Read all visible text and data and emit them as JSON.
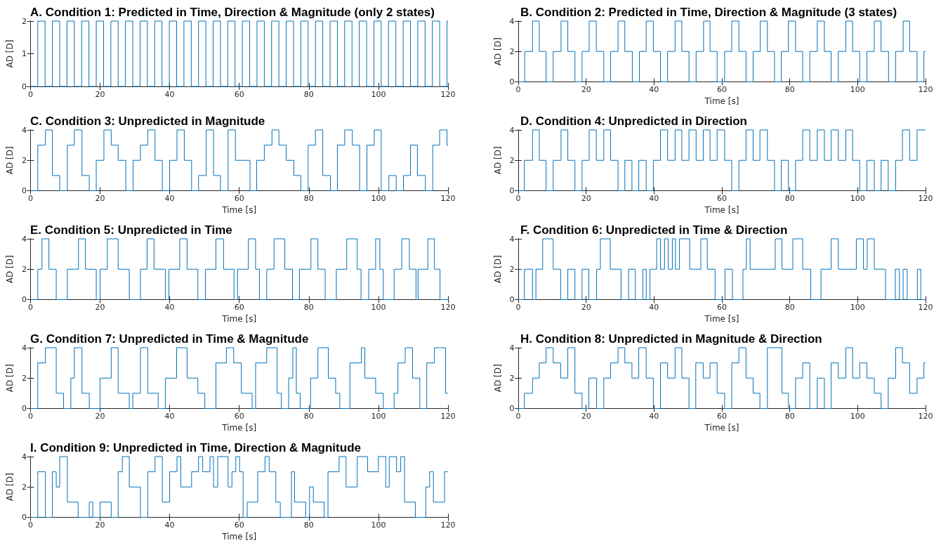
{
  "chart_data": [
    {
      "type": "step",
      "title": "A. Condition 1: Predicted in Time, Direction & Magnitude (only 2 states)",
      "ylabel": "AD [D]",
      "color": "#0072bd",
      "xlim": [
        0,
        120
      ],
      "xticks": [
        0,
        20,
        40,
        60,
        80,
        100,
        120
      ],
      "ylim": [
        0,
        2
      ],
      "yticks": [
        0,
        1,
        2
      ],
      "x": [
        0,
        2.1,
        4.2,
        6.3,
        8.4,
        10.5,
        12.6,
        14.7,
        16.8,
        18.9,
        21,
        23.1,
        25.2,
        27.3,
        29.4,
        31.5,
        33.6,
        35.7,
        37.8,
        39.9,
        42,
        44.1,
        46.2,
        48.3,
        50.4,
        52.5,
        54.6,
        56.7,
        58.8,
        60.9,
        63,
        65.1,
        67.2,
        69.3,
        71.4,
        73.5,
        75.6,
        77.7,
        79.8,
        81.9,
        84,
        86.1,
        88.2,
        90.3,
        92.4,
        94.5,
        96.6,
        98.7,
        100.8,
        102.9,
        105,
        107.1,
        109.2,
        111.3,
        113.4,
        115.5,
        117.6,
        119.7,
        120
      ],
      "values": [
        0,
        2,
        0,
        2,
        0,
        2,
        0,
        2,
        0,
        2,
        0,
        2,
        0,
        2,
        0,
        2,
        0,
        2,
        0,
        2,
        0,
        2,
        0,
        2,
        0,
        2,
        0,
        2,
        0,
        2,
        0,
        2,
        0,
        2,
        0,
        2,
        0,
        2,
        0,
        2,
        0,
        2,
        0,
        2,
        0,
        2,
        0,
        2,
        0,
        2,
        0,
        2,
        0,
        2,
        0,
        2,
        0,
        2,
        2
      ]
    },
    {
      "type": "step",
      "title": "B. Condition 2: Predicted in Time, Direction & Magnitude (3 states)",
      "xlabel": "Time [s]",
      "ylabel": "AD [D]",
      "color": "#0072bd",
      "xlim": [
        0,
        120
      ],
      "xticks": [
        0,
        20,
        40,
        60,
        80,
        100,
        120
      ],
      "ylim": [
        0,
        4
      ],
      "yticks": [
        0,
        2,
        4
      ],
      "x": [
        0,
        1.9,
        4.2,
        6.2,
        8.2,
        10.3,
        12.6,
        14.6,
        16.7,
        18.8,
        20.9,
        23,
        25.2,
        27.2,
        29.4,
        31.4,
        33.6,
        35.7,
        37.7,
        39.8,
        41.9,
        44,
        46.2,
        48.2,
        50.3,
        52.4,
        54.6,
        56.5,
        58.6,
        60.8,
        62.9,
        65,
        67.1,
        69.2,
        71.3,
        73.4,
        75.5,
        77.5,
        79.6,
        81.7,
        83.8,
        85.9,
        88.1,
        90.2,
        92.2,
        94.3,
        96.5,
        98.5,
        100.6,
        102.7,
        104.9,
        106.9,
        109.1,
        111.2,
        113.4,
        115.3,
        117.5,
        119.5,
        120
      ],
      "values": [
        0,
        2,
        4,
        2,
        0,
        2,
        4,
        2,
        0,
        2,
        4,
        2,
        0,
        2,
        4,
        2,
        0,
        2,
        4,
        2,
        0,
        2,
        4,
        2,
        0,
        2,
        4,
        2,
        0,
        2,
        4,
        2,
        0,
        2,
        4,
        2,
        0,
        2,
        4,
        2,
        0,
        2,
        4,
        2,
        0,
        2,
        4,
        2,
        0,
        2,
        4,
        2,
        0,
        2,
        4,
        2,
        0,
        2,
        2
      ]
    },
    {
      "type": "step",
      "title": "C. Condition 3: Unpredicted in Magnitude",
      "xlabel": "Time [s]",
      "ylabel": "AD [D]",
      "color": "#0072bd",
      "xlim": [
        0,
        120
      ],
      "xticks": [
        0,
        20,
        40,
        60,
        80,
        100,
        120
      ],
      "ylim": [
        0,
        4
      ],
      "yticks": [
        0,
        2,
        4
      ],
      "x": [
        0,
        2.1,
        4.3,
        6.3,
        8.4,
        10.6,
        12.6,
        14.8,
        16.9,
        18.9,
        21.1,
        23.2,
        25.2,
        27.4,
        29.5,
        31.6,
        33.7,
        35.8,
        37.9,
        40,
        42.1,
        44.2,
        46.3,
        48.3,
        50.5,
        52.6,
        54.6,
        56.8,
        58.9,
        63.1,
        65,
        67.2,
        69.4,
        71.4,
        73.5,
        75.7,
        77.7,
        79.8,
        81.9,
        84,
        86.2,
        88.2,
        90.3,
        92.5,
        94.6,
        96.7,
        98.8,
        100.8,
        103,
        105.1,
        107.2,
        109.2,
        111.2,
        113.5,
        115.6,
        117.6,
        119.7,
        120
      ],
      "values": [
        0,
        3,
        4,
        1,
        0,
        3,
        4,
        1,
        0,
        2,
        4,
        3,
        2,
        0,
        2,
        3,
        4,
        2,
        0,
        2,
        4,
        2,
        0,
        1,
        4,
        1,
        0,
        4,
        2,
        0,
        2,
        3,
        4,
        3,
        2,
        1,
        0,
        3,
        4,
        1,
        0,
        3,
        4,
        3,
        0,
        3,
        4,
        0,
        1,
        0,
        1,
        3,
        1,
        0,
        3,
        4,
        3,
        3
      ]
    },
    {
      "type": "step",
      "title": "D. Condition 4: Unpredicted in Direction",
      "xlabel": "Time [s]",
      "ylabel": "AD [D]",
      "color": "#0072bd",
      "xlim": [
        0,
        120
      ],
      "xticks": [
        0,
        20,
        40,
        60,
        80,
        100,
        120
      ],
      "ylim": [
        0,
        4
      ],
      "yticks": [
        0,
        2,
        4
      ],
      "x": [
        0,
        1.8,
        4.2,
        6.2,
        8.2,
        10.3,
        12.6,
        14.6,
        16.7,
        18.8,
        20.9,
        23,
        25.2,
        27.2,
        29.4,
        31.4,
        33.5,
        35.5,
        37.7,
        39.8,
        41.9,
        44,
        46.2,
        48.2,
        50.3,
        52.4,
        54.5,
        56.5,
        58.6,
        60.8,
        62.9,
        65,
        67.1,
        69.2,
        71.2,
        73.4,
        75.5,
        77.5,
        79.6,
        81.7,
        83.8,
        85.9,
        88.1,
        90.2,
        92.2,
        94.3,
        96.5,
        98.5,
        100.6,
        102.7,
        104.9,
        106.9,
        109,
        111.2,
        113.2,
        115.3,
        117.5,
        120
      ],
      "values": [
        0,
        2,
        4,
        2,
        0,
        2,
        4,
        2,
        0,
        2,
        4,
        2,
        4,
        2,
        0,
        2,
        0,
        2,
        0,
        2,
        4,
        2,
        4,
        2,
        4,
        2,
        4,
        2,
        4,
        2,
        0,
        2,
        4,
        2,
        4,
        2,
        0,
        2,
        0,
        2,
        4,
        2,
        4,
        2,
        4,
        2,
        4,
        2,
        0,
        2,
        0,
        2,
        0,
        2,
        4,
        2,
        4,
        4
      ]
    },
    {
      "type": "step",
      "title": "E. Condition 5: Unpredicted in Time",
      "xlabel": "Time [s]",
      "ylabel": "AD [D]",
      "color": "#0072bd",
      "xlim": [
        0,
        120
      ],
      "xticks": [
        0,
        20,
        40,
        60,
        80,
        100,
        120
      ],
      "ylim": [
        0,
        4
      ],
      "yticks": [
        0,
        2,
        4
      ],
      "x": [
        0,
        2.1,
        3.3,
        5.3,
        7.4,
        10.6,
        13.8,
        15.8,
        18.9,
        20,
        22.1,
        25.2,
        28.4,
        31.6,
        33.5,
        35.5,
        38.8,
        39.8,
        42.9,
        45,
        48.1,
        50.3,
        53.3,
        55.5,
        58.5,
        59.5,
        62.6,
        64.7,
        65.8,
        67.9,
        70,
        73.1,
        75.3,
        77.3,
        80.6,
        82.6,
        84.7,
        87.9,
        90.9,
        93.9,
        95,
        97.2,
        99.2,
        100.4,
        101.4,
        104.5,
        106.7,
        108.9,
        110.8,
        111.4,
        114.2,
        116.1,
        117.7,
        120
      ],
      "values": [
        0,
        2,
        4,
        2,
        0,
        2,
        4,
        2,
        0,
        2,
        4,
        2,
        0,
        2,
        4,
        2,
        0,
        2,
        4,
        2,
        0,
        2,
        4,
        2,
        0,
        2,
        4,
        2,
        0,
        2,
        4,
        2,
        0,
        2,
        4,
        2,
        0,
        2,
        4,
        2,
        0,
        2,
        4,
        2,
        0,
        2,
        4,
        2,
        0,
        2,
        4,
        2,
        0,
        0
      ]
    },
    {
      "type": "step",
      "title": "F. Condition 6: Unpredicted in Time & Direction",
      "xlabel": "Time [s]",
      "ylabel": "AD [D]",
      "color": "#0072bd",
      "xlim": [
        0,
        120
      ],
      "xticks": [
        0,
        20,
        40,
        60,
        80,
        100,
        120
      ],
      "ylim": [
        0,
        4
      ],
      "yticks": [
        0,
        2,
        4
      ],
      "x": [
        0,
        1.8,
        4.2,
        5.2,
        7.2,
        10.3,
        12.5,
        14.6,
        16.7,
        18.8,
        20.8,
        23.1,
        24.2,
        27.1,
        30.3,
        32.5,
        34.5,
        36.7,
        37.7,
        38.8,
        40.8,
        41.9,
        43.1,
        44.2,
        45.4,
        46.3,
        47.5,
        50.5,
        53.8,
        55.7,
        58,
        60.9,
        63.1,
        66.2,
        67.2,
        68.3,
        75.7,
        77.7,
        80.9,
        83.8,
        86.2,
        89.2,
        92.2,
        94.3,
        99.6,
        101.7,
        102.8,
        104.9,
        108.2,
        111.1,
        112.3,
        113.4,
        114.6,
        117.6,
        118.6,
        120
      ],
      "values": [
        0,
        2,
        0,
        2,
        4,
        2,
        0,
        2,
        0,
        2,
        0,
        2,
        4,
        2,
        0,
        2,
        0,
        2,
        0,
        2,
        4,
        2,
        4,
        2,
        4,
        2,
        4,
        2,
        4,
        2,
        0,
        2,
        0,
        2,
        4,
        2,
        4,
        2,
        4,
        2,
        0,
        2,
        4,
        2,
        4,
        2,
        4,
        2,
        0,
        2,
        0,
        2,
        0,
        2,
        0,
        0
      ]
    },
    {
      "type": "step",
      "title": "G. Condition 7: Unpredicted in Time & Magnitude",
      "xlabel": "Time [s]",
      "ylabel": "AD [D]",
      "color": "#0072bd",
      "xlim": [
        0,
        120
      ],
      "xticks": [
        0,
        20,
        40,
        60,
        80,
        100,
        120
      ],
      "ylim": [
        0,
        4
      ],
      "yticks": [
        0,
        2,
        4
      ],
      "x": [
        0,
        2.1,
        4.3,
        7.4,
        9.5,
        11.6,
        12.6,
        14.8,
        16.9,
        20,
        23.2,
        25.2,
        28.4,
        29.4,
        31.6,
        33.7,
        36.7,
        38.8,
        42,
        45,
        48.1,
        50.1,
        53.3,
        56.3,
        58.4,
        60.6,
        63.7,
        64.7,
        67.9,
        70.9,
        72.1,
        74.2,
        75.4,
        76.4,
        77.5,
        80.5,
        82.6,
        85.6,
        87.7,
        88.9,
        91.8,
        95.1,
        96.1,
        99.2,
        101.4,
        104.5,
        105.6,
        107.7,
        109.8,
        111.9,
        113.9,
        116.1,
        119.3,
        120
      ],
      "values": [
        0,
        3,
        4,
        1,
        0,
        2,
        4,
        1,
        0,
        2,
        4,
        1,
        0,
        1,
        4,
        1,
        0,
        2,
        4,
        2,
        1,
        0,
        3,
        4,
        3,
        1,
        0,
        3,
        4,
        1,
        0,
        2,
        4,
        1,
        0,
        2,
        4,
        2,
        1,
        0,
        3,
        4,
        2,
        1,
        0,
        1,
        3,
        4,
        2,
        0,
        3,
        4,
        1,
        1
      ]
    },
    {
      "type": "step",
      "title": "H. Condition 8: Unpredicted in Magnitude & Direction",
      "xlabel": "Time [s]",
      "ylabel": "AD [D]",
      "color": "#0072bd",
      "xlim": [
        0,
        120
      ],
      "xticks": [
        0,
        20,
        40,
        60,
        80,
        100,
        120
      ],
      "ylim": [
        0,
        4
      ],
      "yticks": [
        0,
        2,
        4
      ],
      "x": [
        0,
        1.8,
        4.2,
        6.2,
        8.2,
        10.3,
        12.5,
        14.6,
        16.7,
        18.8,
        20.8,
        23.1,
        25.2,
        27.2,
        29.4,
        31.4,
        33.5,
        35.5,
        37.7,
        39.8,
        41.9,
        44,
        46.2,
        48.2,
        50.3,
        52.3,
        54.5,
        56.5,
        58.6,
        60.8,
        62.9,
        65,
        67.1,
        69.2,
        71.2,
        73.4,
        77.7,
        79.6,
        81.7,
        83.8,
        85.9,
        88.1,
        90.2,
        92.2,
        94.3,
        96.5,
        98.5,
        100.6,
        102.7,
        104.9,
        106.9,
        109,
        111.2,
        113.2,
        115.3,
        117.5,
        119.5,
        120
      ],
      "values": [
        0,
        1,
        2,
        3,
        4,
        3,
        2,
        4,
        1,
        0,
        2,
        0,
        2,
        3,
        4,
        3,
        2,
        4,
        2,
        0,
        3,
        2,
        4,
        2,
        0,
        3,
        2,
        3,
        1,
        0,
        3,
        4,
        2,
        1,
        0,
        4,
        1,
        0,
        2,
        3,
        0,
        2,
        0,
        3,
        2,
        4,
        2,
        3,
        2,
        1,
        0,
        2,
        4,
        3,
        1,
        2,
        3,
        3
      ]
    },
    {
      "type": "step",
      "title": "I. Condition 9: Unpredicted in Time, Direction & Magnitude",
      "xlabel": "Time [s]",
      "ylabel": "AD [D]",
      "color": "#0072bd",
      "xlim": [
        0,
        120
      ],
      "xticks": [
        0,
        20,
        40,
        60,
        80,
        100,
        120
      ],
      "ylim": [
        0,
        4
      ],
      "yticks": [
        0,
        2,
        4
      ],
      "x": [
        0,
        2.1,
        4.3,
        6.3,
        7.4,
        8.4,
        10.6,
        13.7,
        16.9,
        17.9,
        20,
        23.2,
        25.2,
        26.4,
        28.4,
        31.6,
        33.7,
        35.8,
        37.9,
        40,
        42.1,
        43.2,
        46.3,
        48.3,
        49.5,
        51.6,
        52.6,
        53.8,
        56.8,
        57.9,
        59,
        60.1,
        61.1,
        62.3,
        65.3,
        67.4,
        68.6,
        70.5,
        71.8,
        75,
        75.9,
        79.1,
        80.2,
        81.3,
        84.4,
        85.5,
        88.7,
        90.7,
        93.9,
        96.9,
        100,
        102.1,
        103.1,
        105.2,
        106.4,
        107.5,
        110.6,
        113.6,
        114.7,
        115.8,
        119,
        120
      ],
      "values": [
        0,
        3,
        0,
        3,
        2,
        4,
        1,
        0,
        1,
        0,
        1,
        0,
        3,
        4,
        2,
        0,
        3,
        4,
        1,
        3,
        4,
        2,
        3,
        4,
        3,
        4,
        2,
        4,
        2,
        3,
        4,
        3,
        0,
        1,
        3,
        4,
        3,
        1,
        0,
        3,
        1,
        0,
        2,
        1,
        0,
        3,
        4,
        2,
        4,
        3,
        4,
        2,
        4,
        3,
        4,
        1,
        0,
        2,
        3,
        1,
        3,
        3
      ]
    }
  ]
}
